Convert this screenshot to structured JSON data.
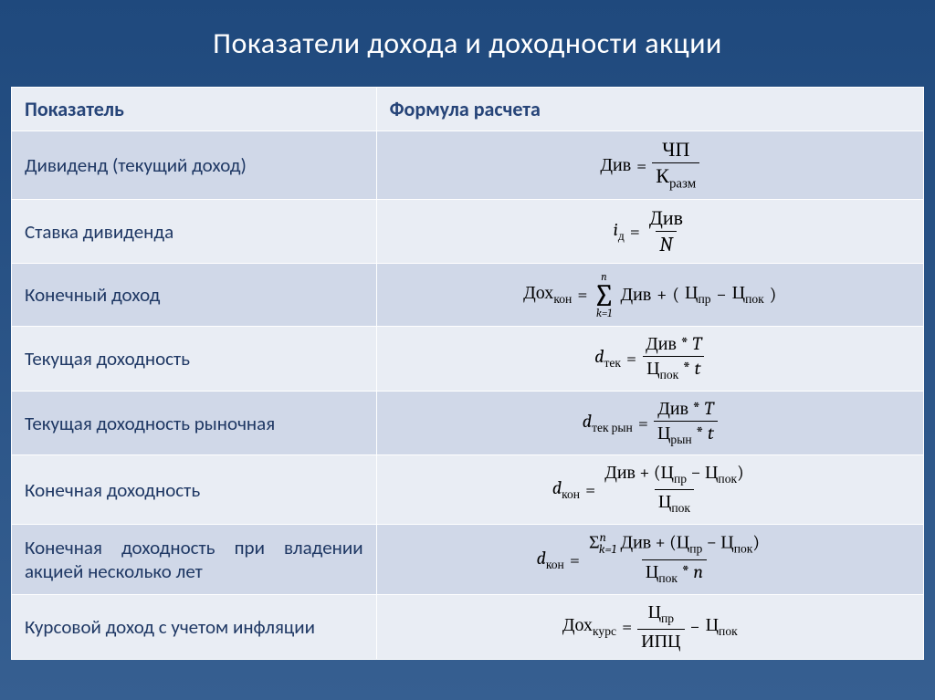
{
  "title": "Показатели дохода и доходности акции",
  "headers": {
    "c0": "Показатель",
    "c1": "Формула расчета"
  },
  "rows": {
    "r0": {
      "label": "Дивиденд (текущий доход)"
    },
    "r1": {
      "label": "Ставка дивиденда"
    },
    "r2": {
      "label": "Конечный доход"
    },
    "r3": {
      "label": "Текущая доходность"
    },
    "r4": {
      "label": "Текущая доходность рыночная"
    },
    "r5": {
      "label": "Конечная доходность"
    },
    "r6": {
      "label": "Конечная доходность при владении акцией несколько лет"
    },
    "r7": {
      "label": "Курсовой доход с учетом инфляции"
    }
  },
  "sym": {
    "Div": "Див",
    "ChP": "ЧП",
    "Krazm": "К",
    "Krazm_sub": "разм",
    "id": "i",
    "id_sub": "д",
    "N": "N",
    "Doh": "Дох",
    "kon_sub": "кон",
    "Sigma_top": "n",
    "Sigma_bot": "k=1",
    "Ts": "Ц",
    "pr_sub": "пр",
    "pok_sub": "пок",
    "ryn_sub": "рын",
    "d": "d",
    "tek_sub": "тек",
    "tekryn_sub": "тек рын",
    "kurs_sub": "курс",
    "T": "T",
    "t": "t",
    "IPTs": "ИПЦ",
    "star": "*",
    "plus": "+",
    "minus": "−",
    "eq": "=",
    "lp": "(",
    "rp": ")",
    "sigma_inline": "Σ",
    "sigma_inline_top": "n",
    "sigma_inline_bot": "k=1",
    "n_small": "n"
  },
  "style": {
    "title_color": "#ffffff",
    "title_fontsize": 32,
    "header_bg": "#e9edf4",
    "header_color": "#264478",
    "row_even_bg": "#d0d8e8",
    "row_odd_bg": "#e9edf4",
    "label_color": "#1f3864",
    "formula_color": "#000000",
    "border_color": "#ffffff",
    "slide_bg_top": "#1f497d",
    "slide_bg_bottom": "#365f91",
    "label_fontsize": 21,
    "formula_fontsize": 20
  }
}
